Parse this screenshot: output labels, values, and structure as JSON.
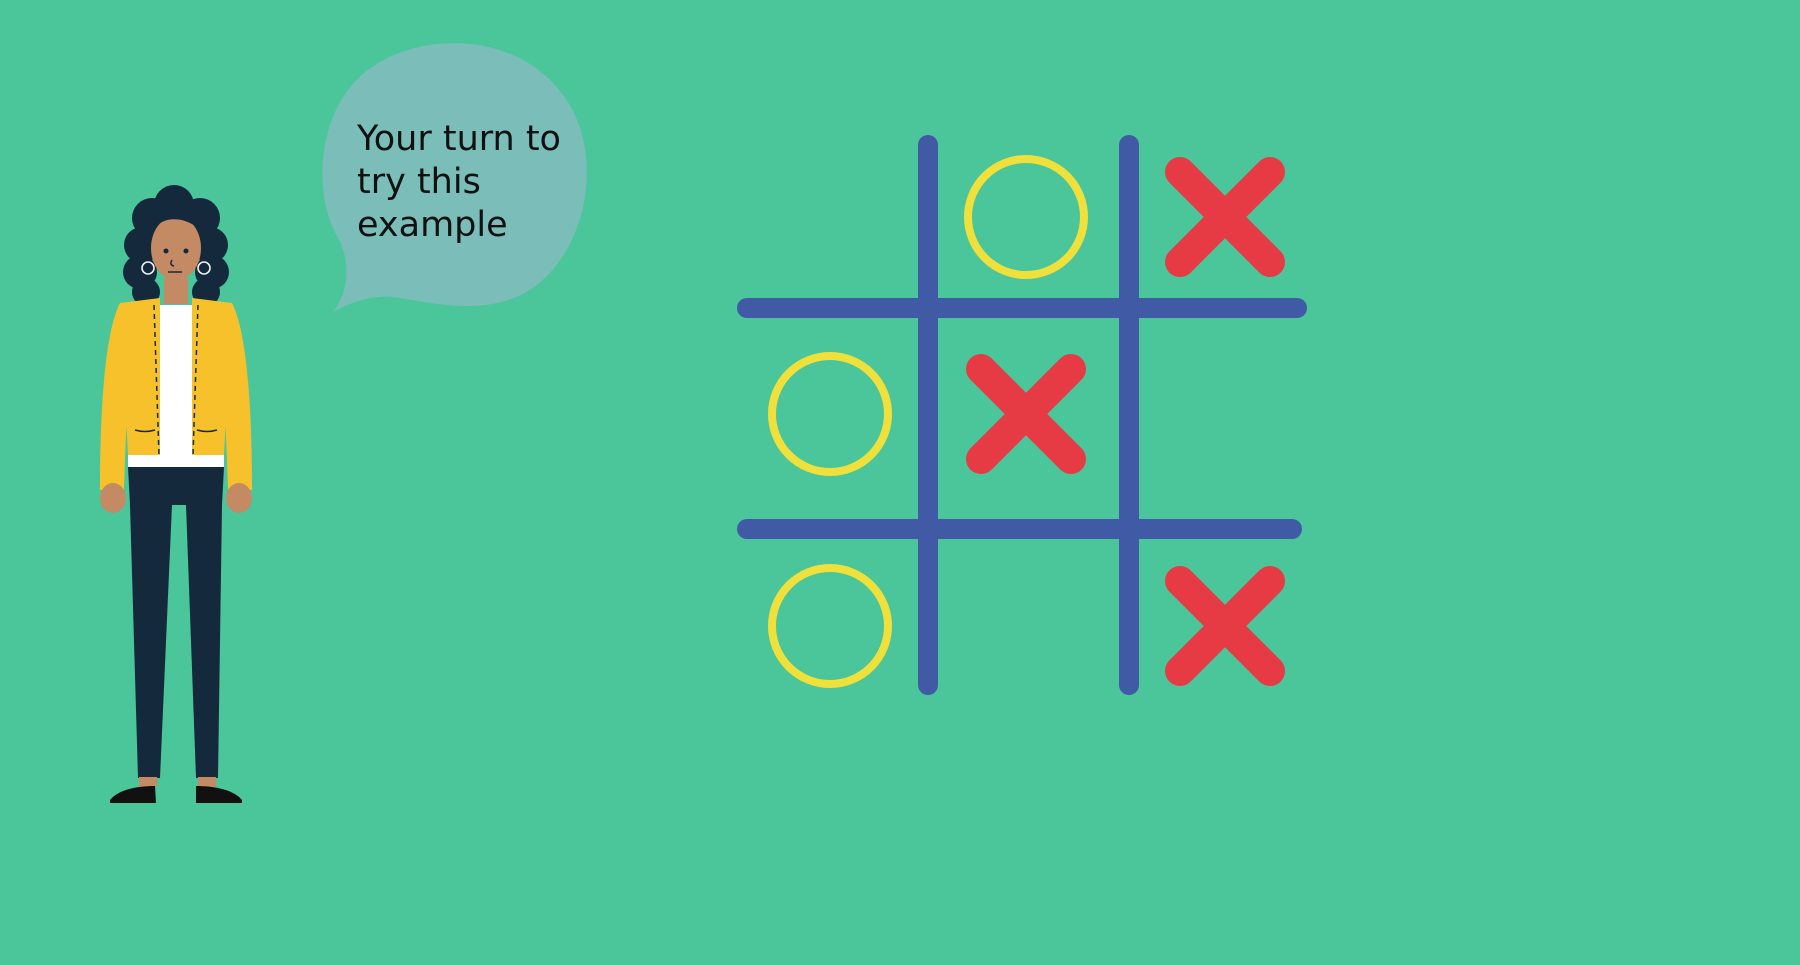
{
  "speech_bubble": {
    "lines": [
      "Your turn to",
      "try this",
      "example"
    ]
  },
  "colors": {
    "background": "#4bc59a",
    "bubble": "#7bbdb8",
    "grid": "#415aa6",
    "o_mark": "#f0e03c",
    "x_mark": "#e63b45",
    "jacket": "#f7c12b",
    "pants": "#142a3c",
    "hair": "#142a3c",
    "skin": "#c48a63"
  },
  "icons": {
    "character": "presenter-woman-icon",
    "o": "o-mark-icon",
    "x": "x-mark-icon"
  },
  "board": {
    "rows": [
      [
        "",
        "O",
        "X"
      ],
      [
        "O",
        "X",
        ""
      ],
      [
        "O",
        "",
        "X"
      ]
    ]
  }
}
